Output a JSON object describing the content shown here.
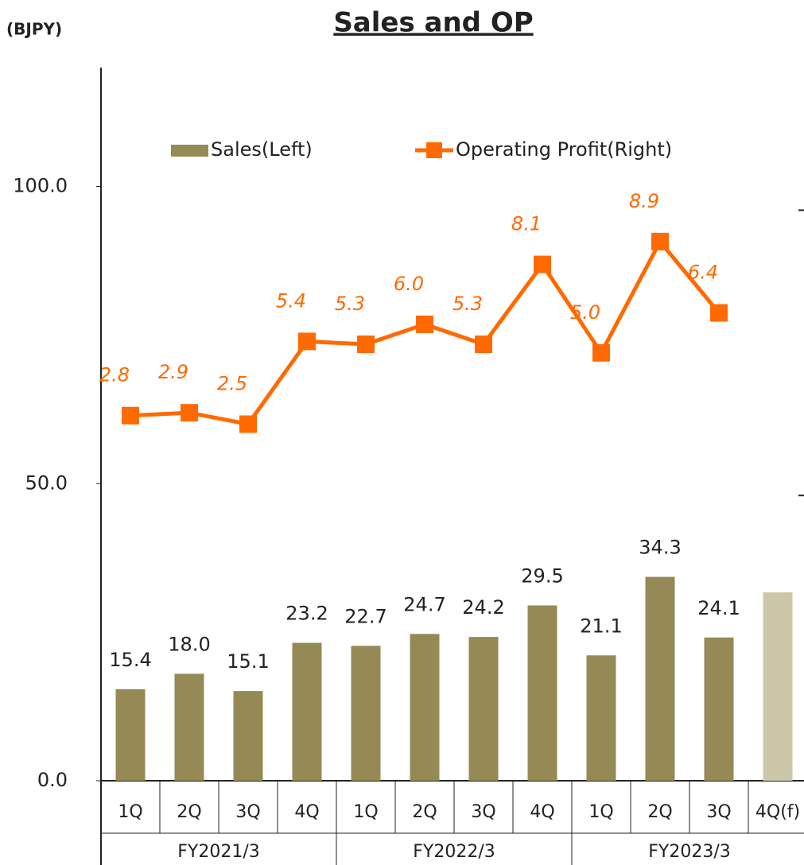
{
  "chart_data": {
    "type": "bar_line",
    "title": "Sales and OP",
    "y_unit": "(BJPY)",
    "categories": [
      "1Q",
      "2Q",
      "3Q",
      "4Q",
      "1Q",
      "2Q",
      "3Q",
      "4Q",
      "1Q",
      "2Q",
      "3Q",
      "4Q(f)"
    ],
    "groups": [
      {
        "label": "FY2021/3",
        "span": 4
      },
      {
        "label": "FY2022/3",
        "span": 4
      },
      {
        "label": "FY2023/3",
        "span": 4
      }
    ],
    "series": [
      {
        "name": "Sales(Left)",
        "type": "bar",
        "axis": "y",
        "color": "#958a55",
        "colors": [
          "#958a55",
          "#958a55",
          "#958a55",
          "#958a55",
          "#958a55",
          "#958a55",
          "#958a55",
          "#958a55",
          "#958a55",
          "#958a55",
          "#958a55",
          "#cdc7aa"
        ],
        "values": [
          15.4,
          18.0,
          15.1,
          23.2,
          22.7,
          24.7,
          24.2,
          29.5,
          21.1,
          34.3,
          24.1,
          31.7
        ],
        "value_labels": [
          "15.4",
          "18.0",
          "15.1",
          "23.2",
          "22.7",
          "24.7",
          "24.2",
          "29.5",
          "21.1",
          "34.3",
          "24.1",
          null
        ]
      },
      {
        "name": "Operating Profit(Right)",
        "type": "line",
        "axis": "y2",
        "color": "#ff6a00",
        "values": [
          2.8,
          2.9,
          2.5,
          5.4,
          5.3,
          6.0,
          5.3,
          8.1,
          5.0,
          8.9,
          6.4,
          null
        ],
        "value_labels": [
          "2.8",
          "2.9",
          "2.5",
          "5.4",
          "5.3",
          "6.0",
          "5.3",
          "8.1",
          "5.0",
          "8.9",
          "6.4",
          null
        ]
      }
    ],
    "ylim": [
      0,
      120
    ],
    "yticks": [
      {
        "value": 0,
        "label": "0.0"
      },
      {
        "value": 50,
        "label": "50.0"
      },
      {
        "value": 100,
        "label": "100.0"
      }
    ],
    "y2lim": [
      -10,
      15
    ],
    "y2ticks": [
      0,
      10
    ],
    "legend": "top"
  }
}
